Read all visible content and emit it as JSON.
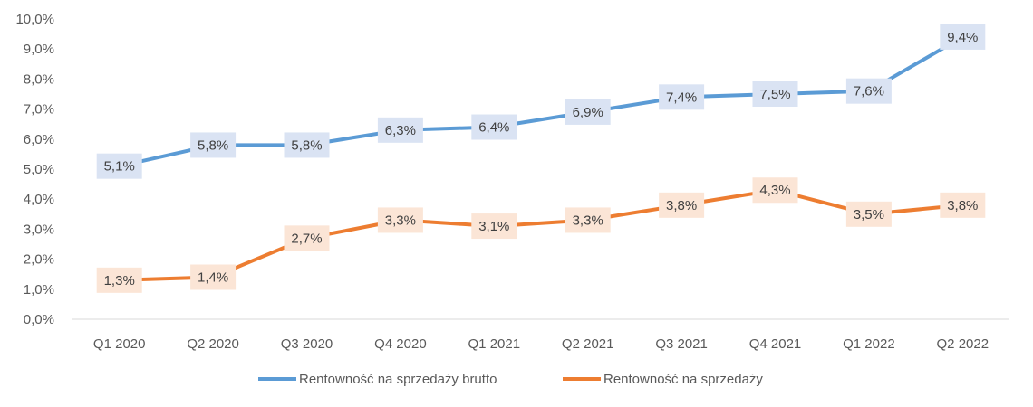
{
  "chart_data": {
    "type": "line",
    "title": "",
    "xlabel": "",
    "ylabel": "",
    "categories": [
      "Q1 2020",
      "Q2 2020",
      "Q3 2020",
      "Q4 2020",
      "Q1 2021",
      "Q2 2021",
      "Q3 2021",
      "Q4 2021",
      "Q1 2022",
      "Q2 2022"
    ],
    "ylim": [
      0,
      10
    ],
    "yticks": [
      0,
      1,
      2,
      3,
      4,
      5,
      6,
      7,
      8,
      9,
      10
    ],
    "ytick_labels": [
      "0,0%",
      "1,0%",
      "2,0%",
      "3,0%",
      "4,0%",
      "5,0%",
      "6,0%",
      "7,0%",
      "8,0%",
      "9,0%",
      "10,0%"
    ],
    "grid": false,
    "legend_position": "bottom",
    "series": [
      {
        "name": "Rentowność na sprzedaży brutto",
        "color": "#5b9bd5",
        "label_bg": "#dae3f3",
        "values": [
          5.1,
          5.8,
          5.8,
          6.3,
          6.4,
          6.9,
          7.4,
          7.5,
          7.6,
          9.4
        ],
        "labels": [
          "5,1%",
          "5,8%",
          "5,8%",
          "6,3%",
          "6,4%",
          "6,9%",
          "7,4%",
          "7,5%",
          "7,6%",
          "9,4%"
        ]
      },
      {
        "name": "Rentowność na sprzedaży",
        "color": "#ed7d31",
        "label_bg": "#fbe5d6",
        "values": [
          1.3,
          1.4,
          2.7,
          3.3,
          3.1,
          3.3,
          3.8,
          4.3,
          3.5,
          3.8
        ],
        "labels": [
          "1,3%",
          "1,4%",
          "2,7%",
          "3,3%",
          "3,1%",
          "3,3%",
          "3,8%",
          "4,3%",
          "3,5%",
          "3,8%"
        ]
      }
    ]
  }
}
